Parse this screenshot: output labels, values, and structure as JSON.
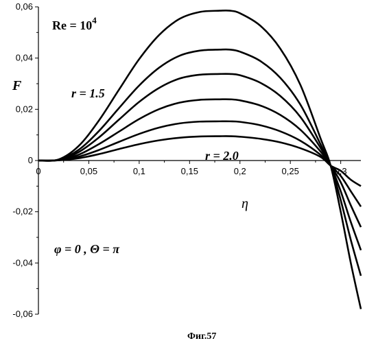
{
  "chart_data": {
    "type": "line",
    "title": "",
    "xlabel": "η",
    "ylabel": "F",
    "xlim": [
      0,
      0.32
    ],
    "ylim": [
      -0.06,
      0.06
    ],
    "grid": false,
    "x_ticks": [
      0,
      0.05,
      0.1,
      0.15,
      0.2,
      0.25,
      0.3
    ],
    "x_tick_labels": [
      "0",
      "0,05",
      "0,1",
      "0,15",
      "0,2",
      "0,25",
      "0,3"
    ],
    "y_ticks": [
      -0.06,
      -0.04,
      -0.02,
      0,
      0.02,
      0.04,
      0.06
    ],
    "y_tick_labels": [
      "-0,06",
      "-0,04",
      "-0,02",
      "0",
      "0,02",
      "0,04",
      "0,06"
    ],
    "x": [
      0,
      0.02,
      0.04,
      0.06,
      0.08,
      0.1,
      0.12,
      0.14,
      0.16,
      0.18,
      0.19,
      0.2,
      0.22,
      0.24,
      0.26,
      0.28,
      0.29,
      0.3,
      0.31,
      0.32
    ],
    "series": [
      {
        "values": [
          0,
          0.0004,
          0.0057,
          0.0156,
          0.0277,
          0.0396,
          0.0491,
          0.0553,
          0.058,
          0.0585,
          0.0585,
          0.0575,
          0.0527,
          0.0437,
          0.0295,
          0.0086,
          -0.002,
          -0.02,
          -0.04,
          -0.058
        ]
      },
      {
        "values": [
          0,
          0.0003,
          0.0042,
          0.0115,
          0.0205,
          0.0293,
          0.0363,
          0.0409,
          0.0429,
          0.0433,
          0.0433,
          0.0425,
          0.0389,
          0.0323,
          0.0218,
          0.0063,
          -0.002,
          -0.0155,
          -0.031,
          -0.045
        ]
      },
      {
        "values": [
          0,
          0.0002,
          0.0033,
          0.009,
          0.016,
          0.0229,
          0.0284,
          0.032,
          0.0335,
          0.0338,
          0.0338,
          0.0333,
          0.0304,
          0.0252,
          0.017,
          0.0049,
          -0.002,
          -0.012,
          -0.024,
          -0.035
        ]
      },
      {
        "values": [
          0,
          0.0002,
          0.0023,
          0.0064,
          0.0113,
          0.0162,
          0.0201,
          0.0226,
          0.0237,
          0.0239,
          0.0239,
          0.0235,
          0.0215,
          0.0178,
          0.012,
          0.0035,
          -0.002,
          -0.0085,
          -0.0175,
          -0.026
        ]
      },
      {
        "values": [
          0,
          0.0001,
          0.0015,
          0.0041,
          0.0073,
          0.0104,
          0.0129,
          0.0145,
          0.0152,
          0.0153,
          0.0153,
          0.0151,
          0.0138,
          0.0114,
          0.0077,
          0.0022,
          -0.002,
          -0.006,
          -0.012,
          -0.018
        ]
      },
      {
        "values": [
          0,
          0.0001,
          0.0009,
          0.0025,
          0.0045,
          0.0064,
          0.0079,
          0.0089,
          0.0094,
          0.0095,
          0.0095,
          0.0093,
          0.0085,
          0.0071,
          0.0048,
          0.0014,
          -0.002,
          -0.004,
          -0.0075,
          -0.01
        ]
      }
    ],
    "annotations": {
      "re_label": "Re = 10",
      "re_exponent": "4",
      "r_top": "r = 1.5",
      "r_bottom": "r = 2.0",
      "params": "φ = 0 , Θ = π"
    },
    "caption": "Фиг.57"
  }
}
